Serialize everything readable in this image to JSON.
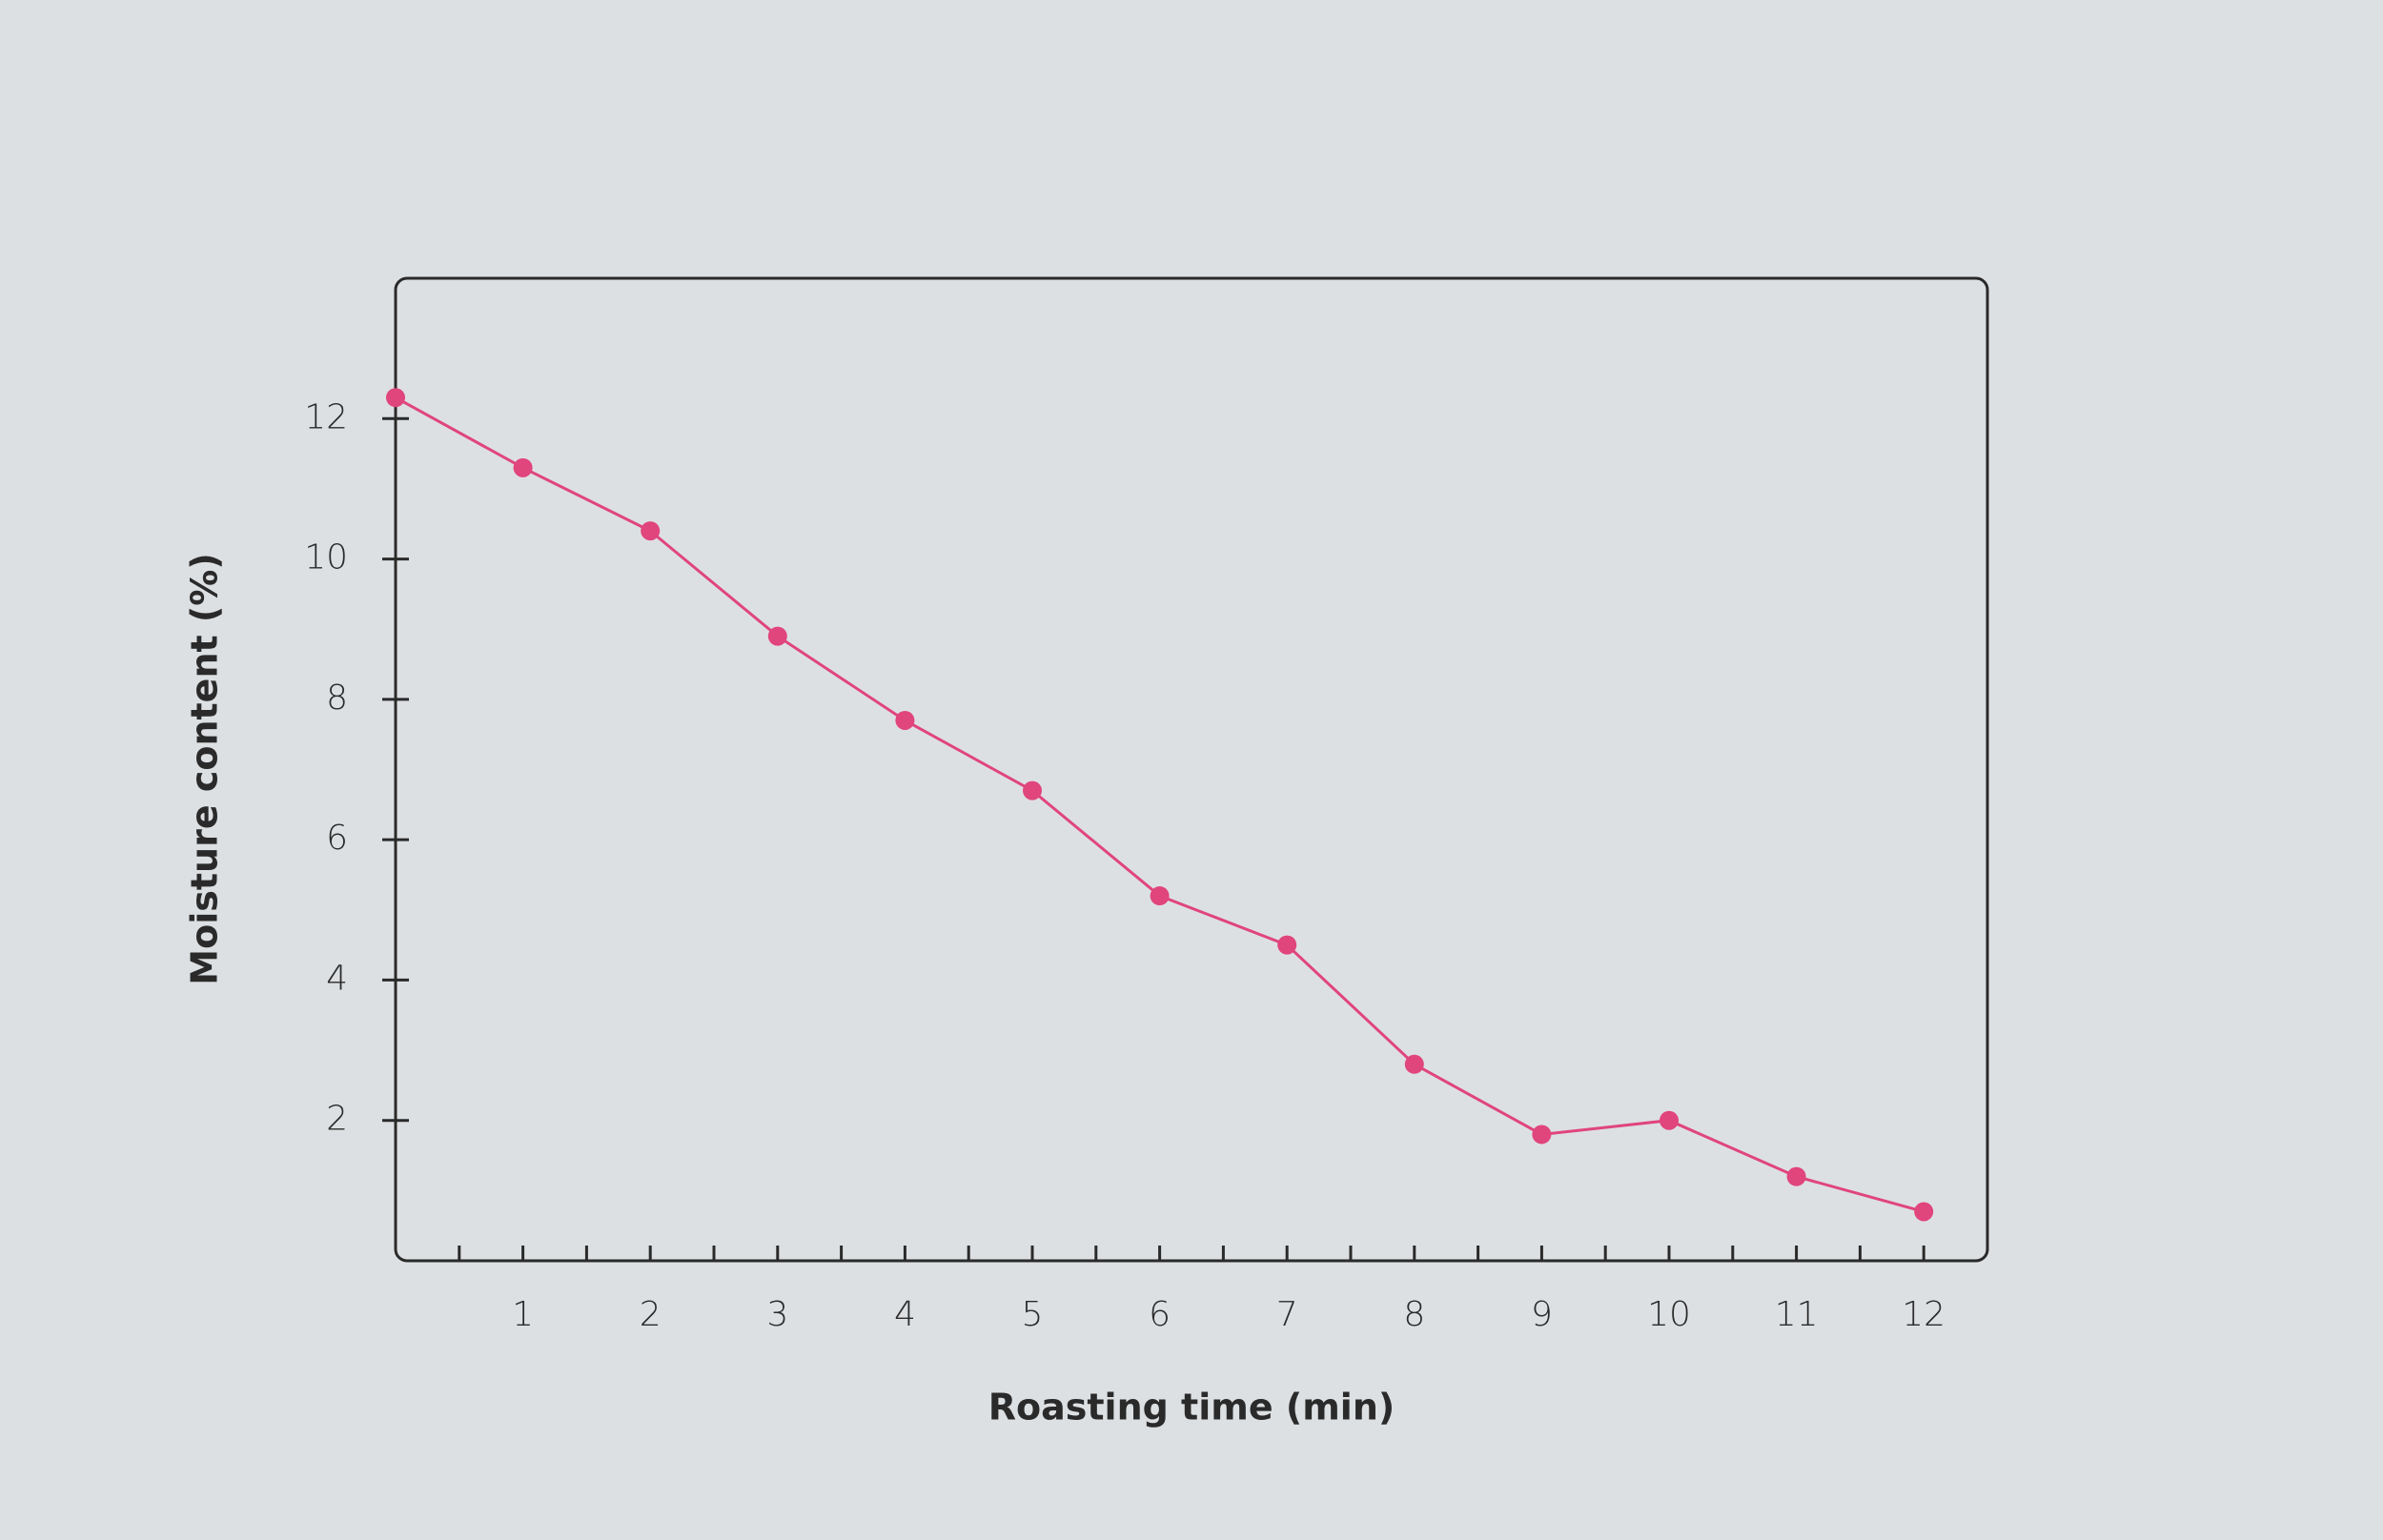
{
  "chart_data": {
    "type": "line",
    "x_label": "Roasting time (min)",
    "y_label": "Moisture content (%)",
    "x": [
      0,
      1,
      2,
      3,
      4,
      5,
      6,
      7,
      8,
      9,
      10,
      11,
      12
    ],
    "series": [
      {
        "name": "Moisture content",
        "color": "#e0457b",
        "values": [
          12.3,
          11.3,
          10.4,
          8.9,
          7.7,
          6.7,
          5.2,
          4.5,
          2.8,
          1.8,
          2.0,
          1.2,
          0.7
        ]
      }
    ],
    "xlim": [
      0,
      12.5
    ],
    "ylim": [
      0,
      14
    ],
    "xticks": [
      1,
      2,
      3,
      4,
      5,
      6,
      7,
      8,
      9,
      10,
      11,
      12
    ],
    "xminorticks": [
      0.5,
      1.5,
      2.5,
      3.5,
      4.5,
      5.5,
      6.5,
      7.5,
      8.5,
      9.5,
      10.5,
      11.5
    ],
    "yticks": [
      2,
      4,
      6,
      8,
      10,
      12
    ],
    "grid": false
  }
}
